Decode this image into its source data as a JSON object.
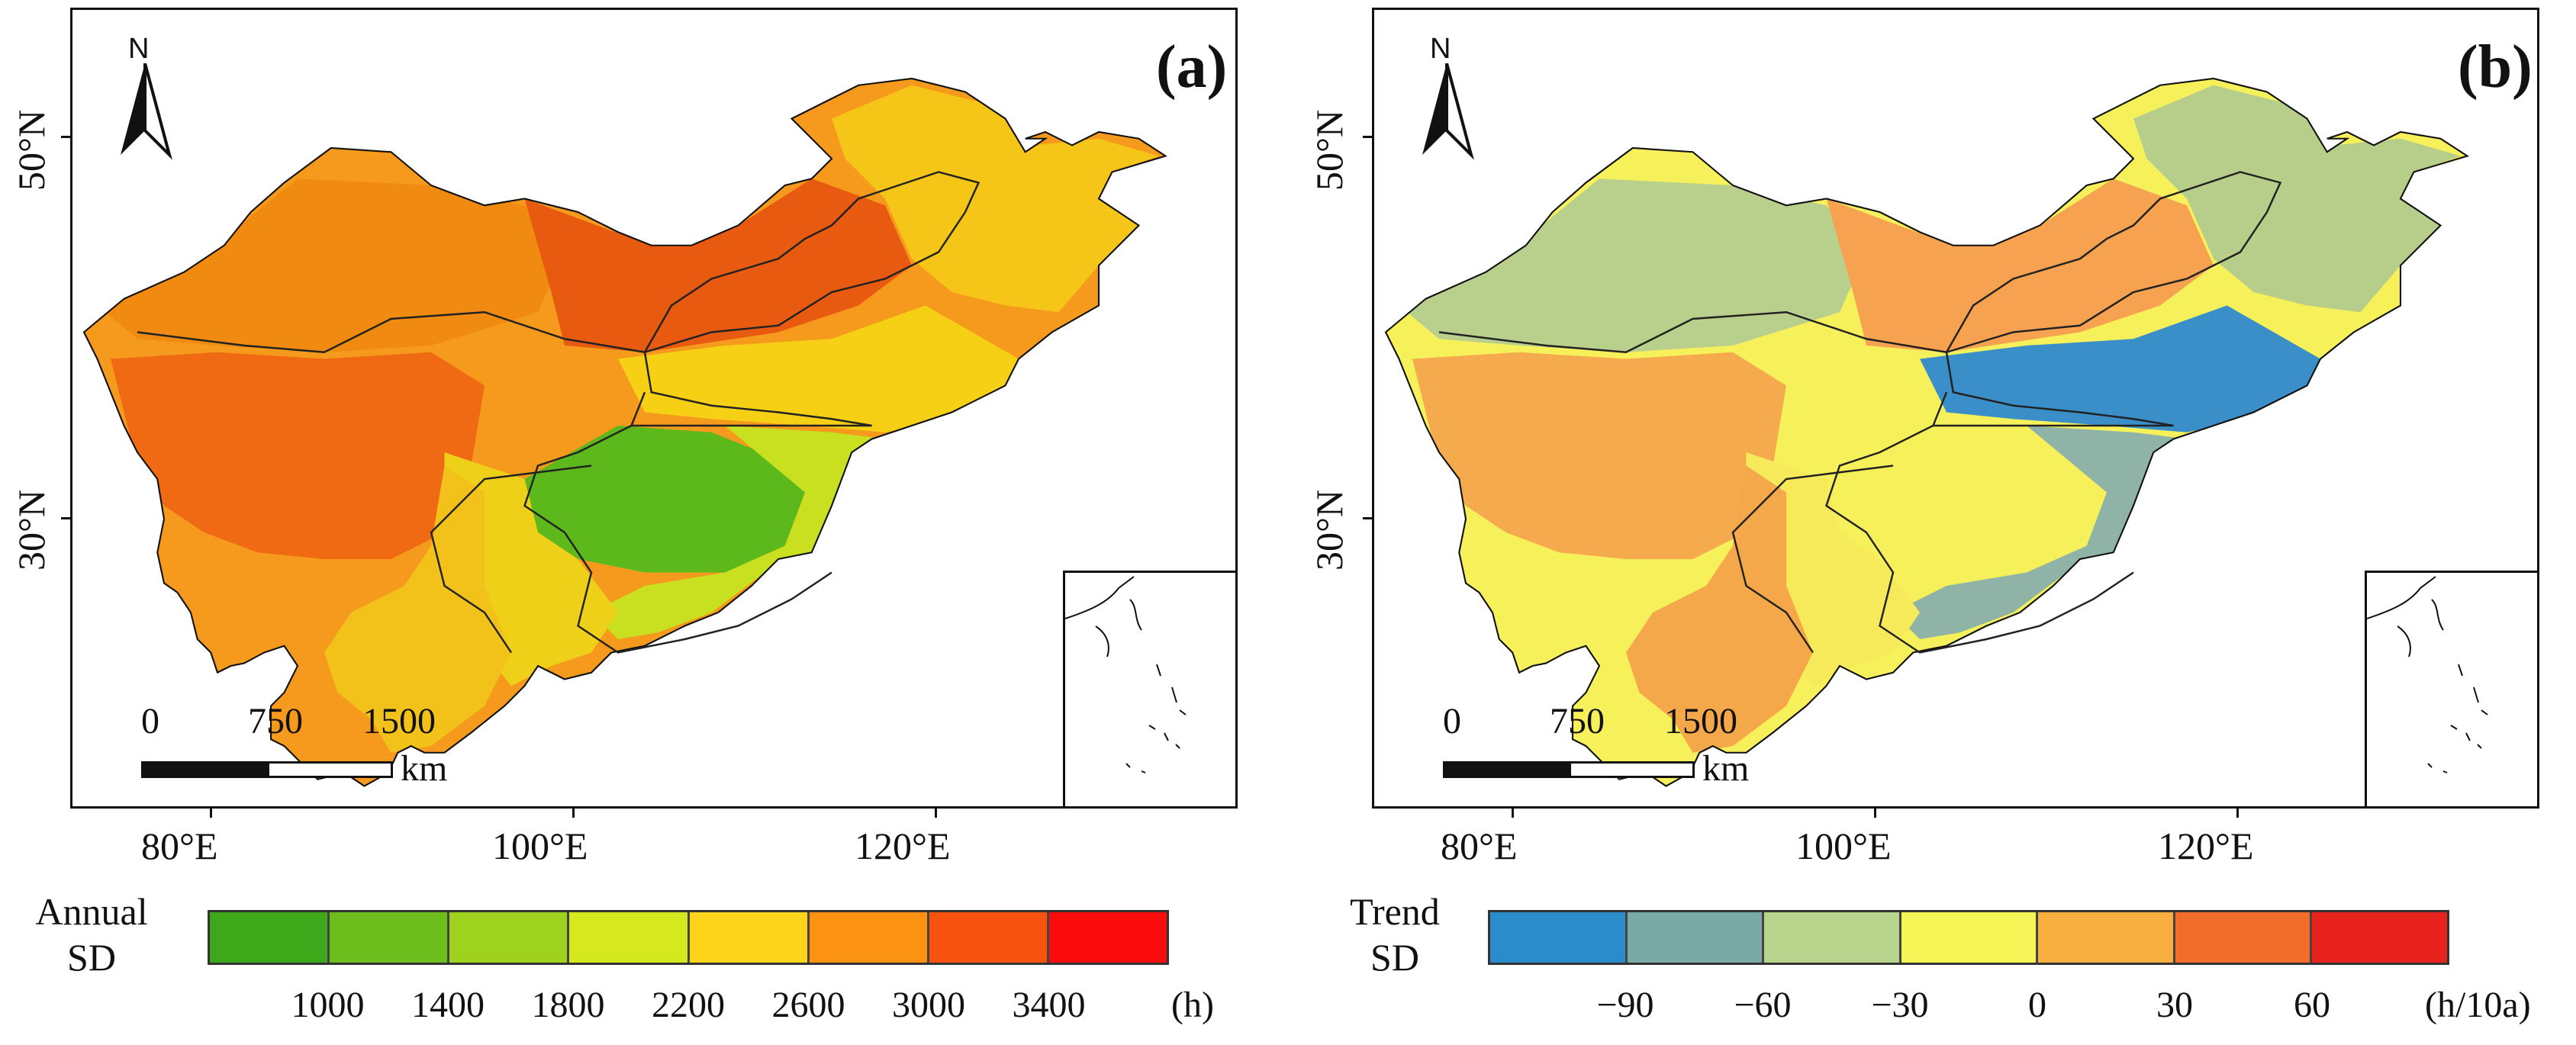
{
  "panels": [
    {
      "label": "(a)",
      "lat_labels": [
        "50°N",
        "30°N"
      ],
      "lon_labels": [
        "80°E",
        "100°E",
        "120°E"
      ],
      "north": "N",
      "scale": {
        "ticks": [
          "0",
          "750",
          "1500"
        ],
        "unit": "km"
      },
      "base_color": "#f59a1c",
      "region_colors": {
        "northwest": "#f08a10",
        "inner_mongolia": "#e85a10",
        "tibet": "#ef6a12",
        "northeast": "#f5c518",
        "north_china": "#f5d015",
        "sichuan_basin": "#5db81c",
        "southeast": "#c8e020",
        "southwest": "#eed018",
        "yunnan": "#f3c21a",
        "hainan": "#f0d520",
        "boundary": "#222222"
      },
      "legend": {
        "title": "Annual\nSD",
        "colors": [
          "#3fa81a",
          "#6dbd1c",
          "#9ed21f",
          "#d6e81e",
          "#fdd419",
          "#fb9212",
          "#f7530e",
          "#fa0c0c"
        ],
        "ticks": [
          "1000",
          "1400",
          "1800",
          "2200",
          "2600",
          "3000",
          "3400"
        ],
        "unit": "(h)"
      }
    },
    {
      "label": "(b)",
      "lat_labels": [
        "50°N",
        "30°N"
      ],
      "lon_labels": [
        "80°E",
        "100°E",
        "120°E"
      ],
      "north": "N",
      "scale": {
        "ticks": [
          "0",
          "750",
          "1500"
        ],
        "unit": "km"
      },
      "base_color": "#f6f05a",
      "region_colors": {
        "northwest": "#b9cf8c",
        "inner_mongolia": "#f6a250",
        "tibet": "#f5aa4d",
        "northeast": "#b7cd8a",
        "north_china": "#3a8fc8",
        "sichuan_basin": "#f6f05a",
        "southeast": "#8fb3a6",
        "southwest": "#f6ea5a",
        "yunnan": "#f5a84a",
        "hainan": "#f0823a",
        "boundary": "#222222"
      },
      "legend": {
        "title": "Trend\nSD",
        "colors": [
          "#2b8ccc",
          "#7aaaa6",
          "#b9d48c",
          "#f6f557",
          "#f9ae40",
          "#f36d2a",
          "#e8221c"
        ],
        "ticks": [
          "−90",
          "−60",
          "−30",
          "0",
          "30",
          "60"
        ],
        "unit": "(h/10a)"
      }
    }
  ]
}
